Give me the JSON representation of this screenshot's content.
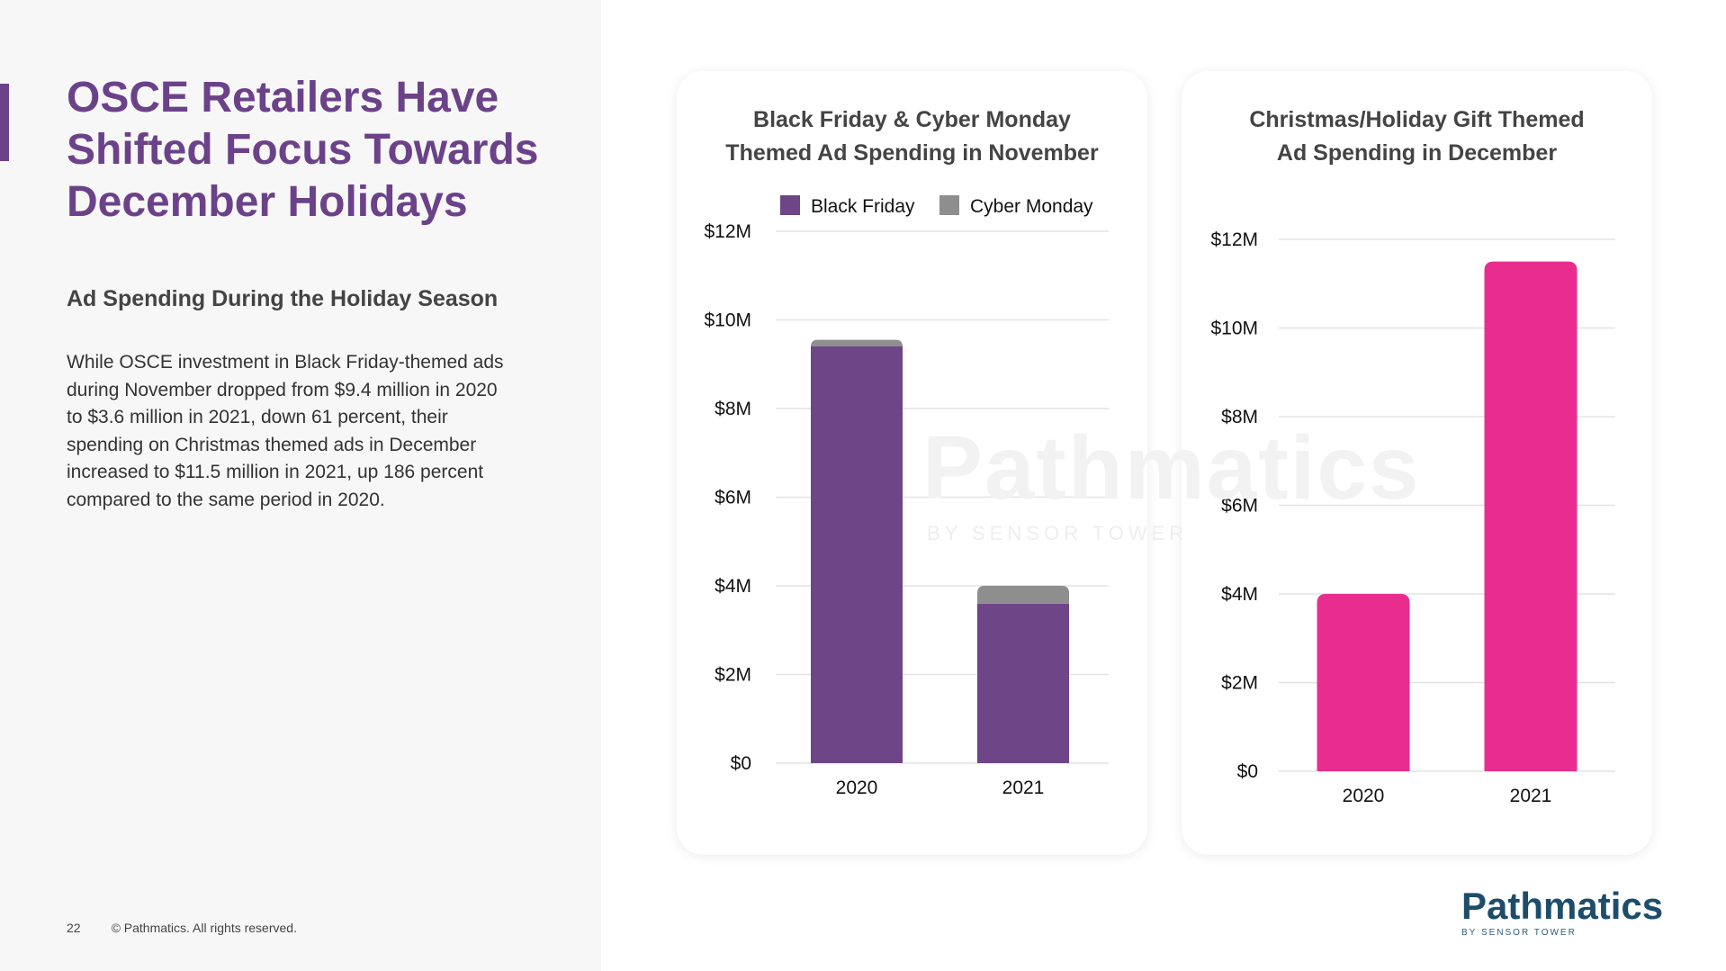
{
  "slide": {
    "title_line1": "OSCE Retailers Have",
    "title_line2": "Shifted Focus Towards",
    "title_line3": "December Holidays",
    "subtitle": "Ad Spending During the Holiday Season",
    "body_line1": "While OSCE investment in Black Friday-themed ads",
    "body_line2": "during November dropped from $9.4 million in 2020",
    "body_line3": "to $3.6 million in 2021, down 61 percent, their",
    "body_line4": "spending on Christmas themed ads in December",
    "body_line5": "increased to $11.5 million in 2021, up 186 percent",
    "body_line6": "compared to the same period in 2020.",
    "page_number": "22",
    "copyright": "© Pathmatics. All rights reserved."
  },
  "brand": {
    "logo_main": "Pathmatics",
    "logo_sub": "BY SENSOR TOWER",
    "watermark_main": "Pathmatics",
    "watermark_sub": "BY SENSOR TOWER",
    "accent_color": "#6b4289"
  },
  "chart_data": [
    {
      "type": "bar",
      "stacked": true,
      "title_line1": "Black Friday & Cyber Monday",
      "title_line2": "Themed Ad Spending in November",
      "categories": [
        "2020",
        "2021"
      ],
      "series": [
        {
          "name": "Black Friday",
          "values": [
            9.4,
            3.6
          ],
          "color": "#6e4587"
        },
        {
          "name": "Cyber Monday",
          "values": [
            0.15,
            0.4
          ],
          "color": "#8e8e8e"
        }
      ],
      "yticks": [
        0,
        2,
        4,
        6,
        8,
        10,
        12
      ],
      "ytick_labels": [
        "$0",
        "$2M",
        "$4M",
        "$6M",
        "$8M",
        "$10M",
        "$12M"
      ],
      "ylim": [
        0,
        12
      ],
      "legend_position": "top-right",
      "grid": true
    },
    {
      "type": "bar",
      "stacked": false,
      "title_line1": "Christmas/Holiday Gift Themed",
      "title_line2": "Ad Spending in December",
      "categories": [
        "2020",
        "2021"
      ],
      "series": [
        {
          "name": "Christmas/Holiday Gift",
          "values": [
            4.0,
            11.5
          ],
          "color": "#e92d8f"
        }
      ],
      "yticks": [
        0,
        2,
        4,
        6,
        8,
        10,
        12
      ],
      "ytick_labels": [
        "$0",
        "$2M",
        "$4M",
        "$6M",
        "$8M",
        "$10M",
        "$12M"
      ],
      "ylim": [
        0,
        12
      ],
      "legend_position": "none",
      "grid": true
    }
  ]
}
